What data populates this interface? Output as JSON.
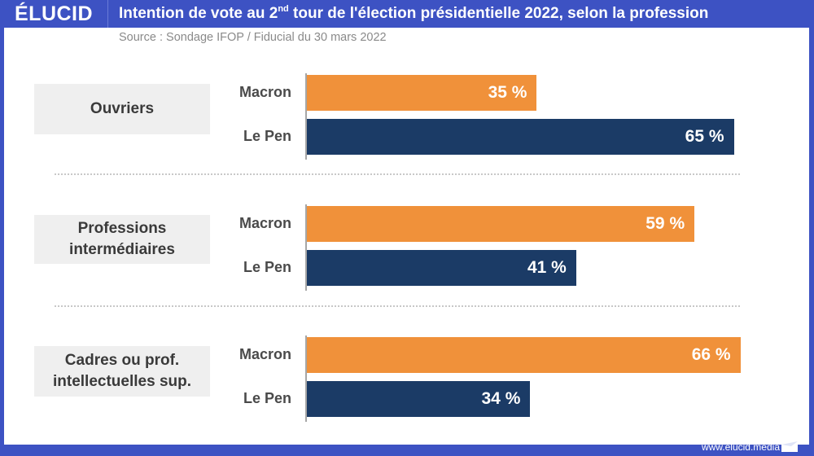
{
  "header": {
    "logo": "ÉLUCID",
    "title_pre": "Intention de vote au 2",
    "title_sup": "nd",
    "title_post": " tour de l'élection présidentielle 2022, selon la profession",
    "source": "Source : Sondage IFOP / Fiducial du 30 mars 2022"
  },
  "footer": {
    "url": "www.elucid.media"
  },
  "colors": {
    "macron": "#f0913a",
    "lepen": "#1b3b66",
    "frame": "#3d52c3"
  },
  "chart_data": {
    "type": "bar",
    "orientation": "horizontal",
    "title": "Intention de vote au 2nd tour de l'élection présidentielle 2022, selon la profession",
    "subtitle": "Source : Sondage IFOP / Fiducial du 30 mars 2022",
    "unit": "%",
    "xlim": [
      0,
      100
    ],
    "grid": false,
    "categories": [
      "Ouvriers",
      "Professions intermédiaires",
      "Cadres ou prof. intellectuelles sup."
    ],
    "category_display": [
      [
        "Ouvriers"
      ],
      [
        "Professions",
        "intermédiaires"
      ],
      [
        "Cadres ou prof.",
        "intellectuelles sup."
      ]
    ],
    "series": [
      {
        "name": "Macron",
        "values": [
          35,
          59,
          66
        ],
        "labels": [
          "35 %",
          "59 %",
          "66 %"
        ]
      },
      {
        "name": "Le Pen",
        "values": [
          65,
          41,
          34
        ],
        "labels": [
          "65 %",
          "41 %",
          "34 %"
        ]
      }
    ]
  }
}
